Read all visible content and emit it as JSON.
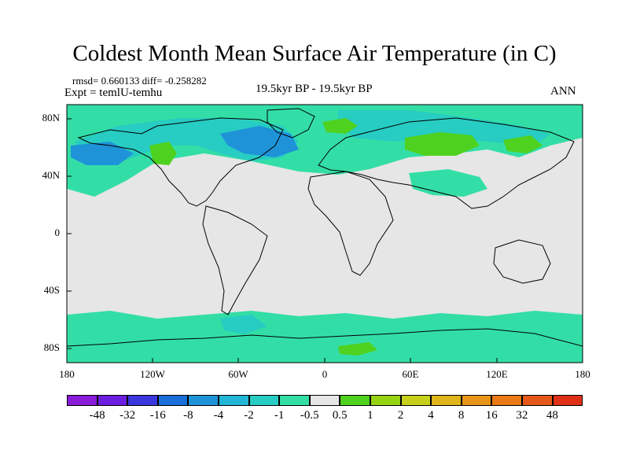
{
  "title": "Coldest Month Mean Surface Air Temperature (in C)",
  "stats": "rmsd= 0.660133 diff= -0.258282",
  "expt": "Expt = temlU-temhu",
  "period": "19.5kyr BP - 19.5kyr BP",
  "season": "ANN",
  "lat_labels": [
    "80N",
    "40N",
    "0",
    "40S",
    "80S"
  ],
  "lon_labels": [
    "180",
    "120W",
    "60W",
    "0",
    "60E",
    "120E",
    "180"
  ],
  "colorbar": {
    "colors": [
      "#8a1bd8",
      "#6b1ee0",
      "#3a38dc",
      "#1a6fd8",
      "#1e93d8",
      "#22b6d6",
      "#27ccc2",
      "#33dea6",
      "#e6e6e6",
      "#4fd11f",
      "#95d313",
      "#c6d01a",
      "#dfb51a",
      "#e8951a",
      "#e97a16",
      "#e6581a",
      "#e03018"
    ],
    "labels": [
      "-48",
      "-32",
      "-16",
      "-8",
      "-4",
      "-2",
      "-1",
      "-0.5",
      "0.5",
      "1",
      "2",
      "4",
      "8",
      "16",
      "32",
      "48"
    ]
  },
  "colors": {
    "no_change": "#e6e6e6",
    "cool_small": "#33dea6",
    "cool_medium": "#27ccc2",
    "cool_large": "#1e93d8",
    "warm_small": "#4fd11f"
  }
}
